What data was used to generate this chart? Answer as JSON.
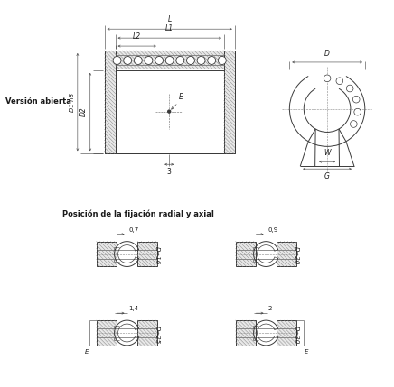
{
  "bg_color": "#ffffff",
  "line_color": "#3a3a3a",
  "hatch_color": "#888888",
  "text_color": "#1a1a1a",
  "title_text": "Versión abierta",
  "subtitle_text": "Posición de la fijación radial y axial",
  "snap_labels": [
    "0,7",
    "0,9",
    "1,4",
    "2"
  ],
  "snap_dims": [
    "D=16",
    "D=20",
    "D=25",
    "D=30"
  ]
}
